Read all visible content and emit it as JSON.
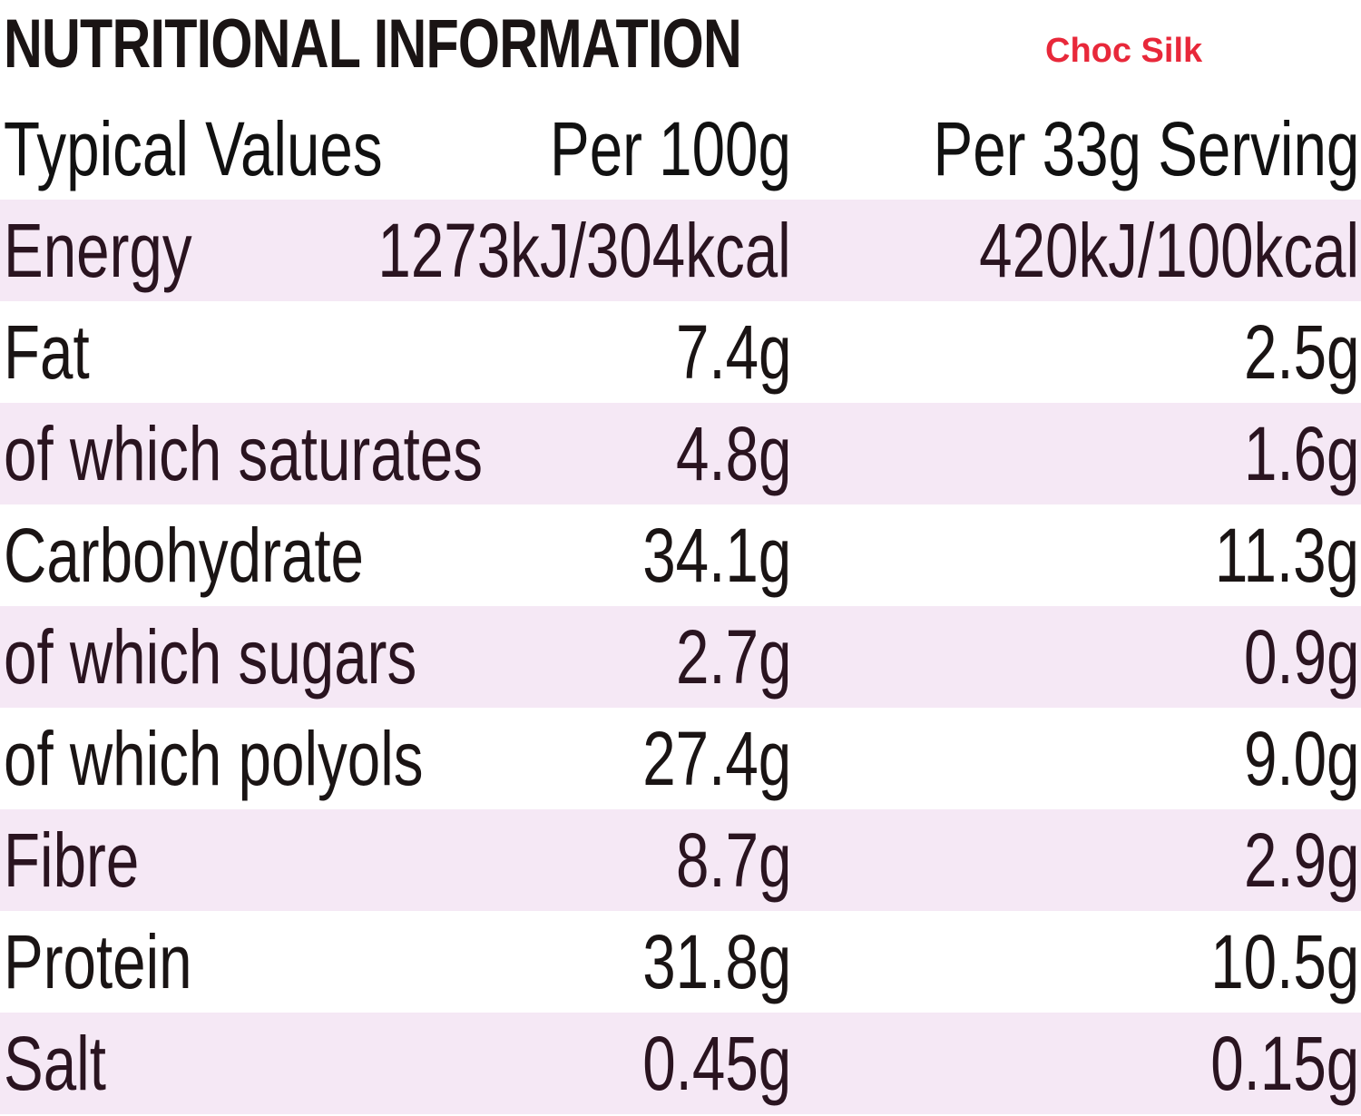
{
  "title": "NUTRITIONAL INFORMATION",
  "product_name": "Choc Silk",
  "header": {
    "label": "Typical Values",
    "per_100g": "Per 100g",
    "per_serving": "Per 33g Serving"
  },
  "rows": [
    {
      "label": "Energy",
      "per_100g": "1273kJ/304kcal",
      "per_serving": "420kJ/100kcal"
    },
    {
      "label": "Fat",
      "per_100g": "7.4g",
      "per_serving": "2.5g"
    },
    {
      "label": "of which saturates",
      "per_100g": "4.8g",
      "per_serving": "1.6g"
    },
    {
      "label": "Carbohydrate",
      "per_100g": "34.1g",
      "per_serving": "11.3g"
    },
    {
      "label": "of which sugars",
      "per_100g": "2.7g",
      "per_serving": "0.9g"
    },
    {
      "label": "of which polyols",
      "per_100g": "27.4g",
      "per_serving": "9.0g"
    },
    {
      "label": "Fibre",
      "per_100g": "8.7g",
      "per_serving": "2.9g"
    },
    {
      "label": "Protein",
      "per_100g": "31.8g",
      "per_serving": "10.5g"
    },
    {
      "label": "Salt",
      "per_100g": "0.45g",
      "per_serving": "0.15g"
    }
  ],
  "colors": {
    "text": "#1a1414",
    "shaded_row": "#f5e8f5",
    "product_name": "#e8283a"
  }
}
